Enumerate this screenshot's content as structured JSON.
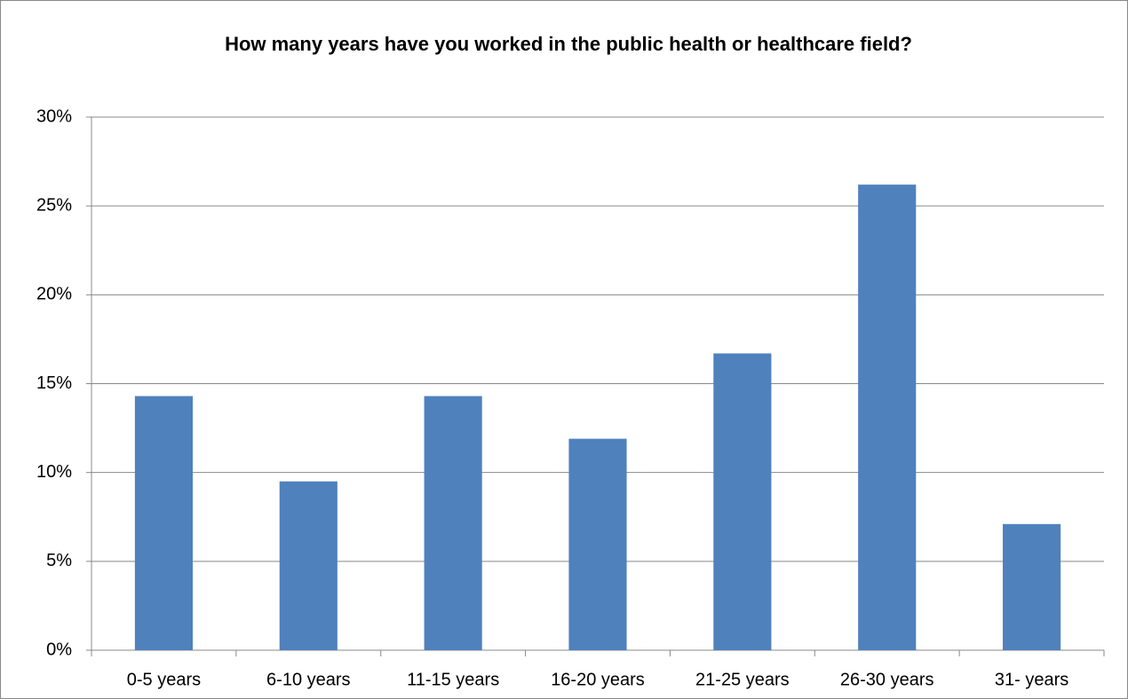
{
  "chart_data": {
    "type": "bar",
    "title": "How many years have you worked in the public health or healthcare field?",
    "categories": [
      "0-5 years",
      "6-10 years",
      "11-15 years",
      "16-20 years",
      "21-25 years",
      "26-30 years",
      "31- years"
    ],
    "values": [
      14.3,
      9.5,
      14.3,
      11.9,
      16.7,
      26.2,
      7.1
    ],
    "color": "#4f81bd",
    "ylim": [
      0,
      30
    ],
    "yticks": [
      {
        "value": 0,
        "label": "0%"
      },
      {
        "value": 5,
        "label": "5%"
      },
      {
        "value": 10,
        "label": "10%"
      },
      {
        "value": 15,
        "label": "15%"
      },
      {
        "value": 20,
        "label": "20%"
      },
      {
        "value": 25,
        "label": "25%"
      },
      {
        "value": 30,
        "label": "30%"
      }
    ],
    "grid": true
  }
}
